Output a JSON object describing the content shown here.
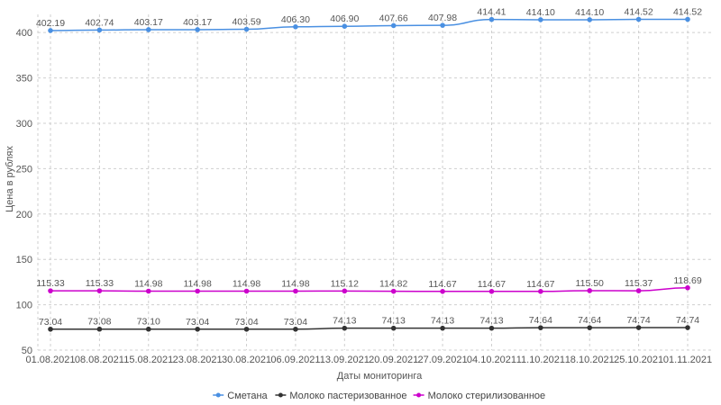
{
  "chart_data": {
    "type": "line",
    "title": "",
    "xlabel": "Даты мониторинга",
    "ylabel": "Цена в рублях",
    "ylim": [
      50,
      420
    ],
    "yticks": [
      50,
      100,
      150,
      200,
      250,
      300,
      350,
      400
    ],
    "grid": true,
    "legend_position": "bottom",
    "categories": [
      "01.08.2021",
      "08.08.2021",
      "15.08.2021",
      "23.08.2021",
      "30.08.2021",
      "06.09.2021",
      "13.09.2021",
      "20.09.2021",
      "27.09.2021",
      "04.10.2021",
      "11.10.2021",
      "18.10.2021",
      "25.10.2021",
      "01.11.2021"
    ],
    "series": [
      {
        "name": "Сметана",
        "color": "#4a90e2",
        "values": [
          402.19,
          402.74,
          403.17,
          403.17,
          403.59,
          406.3,
          406.9,
          407.66,
          407.98,
          414.41,
          414.1,
          414.1,
          414.52,
          414.52
        ],
        "labels": [
          "402.19",
          "402.74",
          "403.17",
          "403.17",
          "403.59",
          "406.30",
          "406.90",
          "407.66",
          "407.98",
          "414.41",
          "414.10",
          "414.10",
          "414.52",
          "414.52"
        ]
      },
      {
        "name": "Молоко пастеризованное",
        "color": "#333333",
        "values": [
          73.04,
          73.08,
          73.1,
          73.04,
          73.04,
          73.04,
          74.13,
          74.13,
          74.13,
          74.13,
          74.64,
          74.64,
          74.74,
          74.74
        ],
        "labels": [
          "73.04",
          "73.08",
          "73.10",
          "73.04",
          "73.04",
          "73.04",
          "74.13",
          "74.13",
          "74.13",
          "74.13",
          "74.64",
          "74.64",
          "74.74",
          "74.74"
        ]
      },
      {
        "name": "Молоко стерилизованное",
        "color": "#cc00cc",
        "values": [
          115.33,
          115.33,
          114.98,
          114.98,
          114.98,
          114.98,
          115.12,
          114.82,
          114.67,
          114.67,
          114.67,
          115.5,
          115.37,
          118.69
        ],
        "labels": [
          "115.33",
          "115.33",
          "114.98",
          "114.98",
          "114.98",
          "114.98",
          "115.12",
          "114.82",
          "114.67",
          "114.67",
          "114.67",
          "115.50",
          "115.37",
          "118.69"
        ]
      }
    ]
  }
}
